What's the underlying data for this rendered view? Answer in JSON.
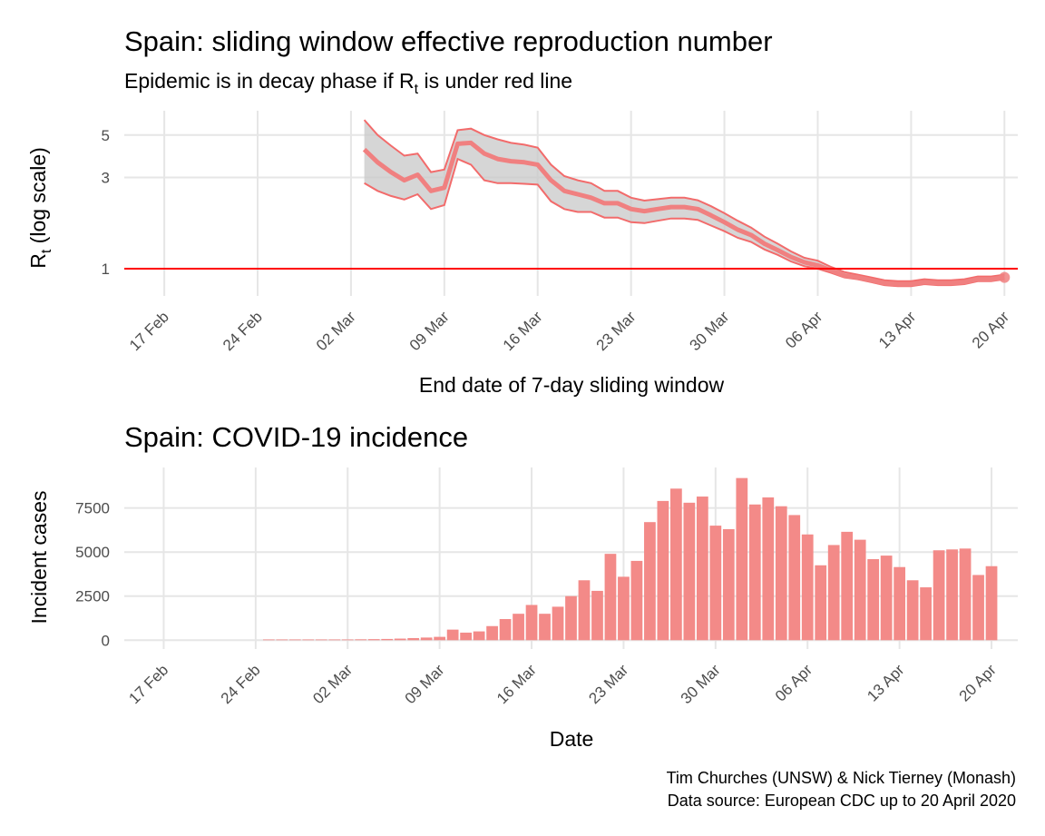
{
  "colors": {
    "line": "#f08080",
    "line_dark": "#f26b6b",
    "ribbon": "#c8c8c8",
    "threshold": "#ff0000",
    "bar": "#f38a88",
    "grid": "#e6e6e6"
  },
  "caption": {
    "line1": "Tim Churches (UNSW) & Nick Tierney (Monash)",
    "line2": "Data source: European CDC up to 20 April 2020"
  },
  "chart_data": [
    {
      "type": "line",
      "title": "Spain: sliding window effective reproduction number",
      "subtitle_before": "Epidemic is in decay phase if R",
      "subtitle_sub": "t",
      "subtitle_after": " is under red line",
      "xlabel": "End date of 7-day sliding window",
      "ylabel_main": "R",
      "ylabel_sub": "t",
      "ylabel_after": " (log scale)",
      "y_scale": "log",
      "ylim": [
        0.72,
        7.0
      ],
      "xlim": [
        "2020-02-14",
        "2020-04-21"
      ],
      "y_ticks": [
        1,
        3,
        5
      ],
      "x_ticks": [
        "2020-02-17",
        "2020-02-24",
        "2020-03-02",
        "2020-03-09",
        "2020-03-16",
        "2020-03-23",
        "2020-03-30",
        "2020-04-06",
        "2020-04-13",
        "2020-04-20"
      ],
      "x_tick_labels": [
        "17 Feb",
        "24 Feb",
        "02 Mar",
        "09 Mar",
        "16 Mar",
        "23 Mar",
        "30 Mar",
        "06 Apr",
        "13 Apr",
        "20 Apr"
      ],
      "threshold": 1,
      "grid": true,
      "series": [
        {
          "x": [
            "2020-03-03",
            "2020-03-04",
            "2020-03-05",
            "2020-03-06",
            "2020-03-07",
            "2020-03-08",
            "2020-03-09",
            "2020-03-10",
            "2020-03-11",
            "2020-03-12",
            "2020-03-13",
            "2020-03-14",
            "2020-03-15",
            "2020-03-16",
            "2020-03-17",
            "2020-03-18",
            "2020-03-19",
            "2020-03-20",
            "2020-03-21",
            "2020-03-22",
            "2020-03-23",
            "2020-03-24",
            "2020-03-25",
            "2020-03-26",
            "2020-03-27",
            "2020-03-28",
            "2020-03-29",
            "2020-03-30",
            "2020-03-31",
            "2020-04-01",
            "2020-04-02",
            "2020-04-03",
            "2020-04-04",
            "2020-04-05",
            "2020-04-06",
            "2020-04-07",
            "2020-04-08",
            "2020-04-09",
            "2020-04-10",
            "2020-04-11",
            "2020-04-12",
            "2020-04-13",
            "2020-04-14",
            "2020-04-15",
            "2020-04-16",
            "2020-04-17",
            "2020-04-18",
            "2020-04-19",
            "2020-04-20"
          ],
          "y": [
            4.2,
            3.6,
            3.2,
            2.9,
            3.1,
            2.55,
            2.65,
            4.5,
            4.55,
            4.0,
            3.75,
            3.65,
            3.6,
            3.5,
            2.9,
            2.55,
            2.45,
            2.35,
            2.2,
            2.2,
            2.05,
            2.0,
            2.05,
            2.1,
            2.1,
            2.05,
            1.9,
            1.75,
            1.6,
            1.5,
            1.35,
            1.25,
            1.15,
            1.08,
            1.04,
            0.98,
            0.92,
            0.9,
            0.87,
            0.84,
            0.83,
            0.83,
            0.85,
            0.84,
            0.84,
            0.85,
            0.88,
            0.88,
            0.9
          ],
          "lower": [
            2.8,
            2.55,
            2.4,
            2.3,
            2.45,
            2.05,
            2.15,
            3.75,
            3.5,
            2.9,
            2.8,
            2.8,
            2.78,
            2.75,
            2.25,
            2.05,
            1.98,
            1.98,
            1.85,
            1.85,
            1.75,
            1.73,
            1.78,
            1.83,
            1.83,
            1.8,
            1.68,
            1.57,
            1.45,
            1.38,
            1.26,
            1.18,
            1.09,
            1.03,
            1.0,
            0.95,
            0.9,
            0.88,
            0.85,
            0.82,
            0.81,
            0.81,
            0.83,
            0.82,
            0.82,
            0.83,
            0.86,
            0.86,
            0.88
          ],
          "upper": [
            6.0,
            5.0,
            4.4,
            3.9,
            4.0,
            3.2,
            3.3,
            5.3,
            5.4,
            5.0,
            4.75,
            4.55,
            4.45,
            4.3,
            3.5,
            3.05,
            2.9,
            2.8,
            2.55,
            2.55,
            2.35,
            2.27,
            2.31,
            2.35,
            2.35,
            2.28,
            2.12,
            1.95,
            1.78,
            1.64,
            1.47,
            1.35,
            1.23,
            1.14,
            1.1,
            1.02,
            0.96,
            0.93,
            0.9,
            0.87,
            0.86,
            0.86,
            0.88,
            0.87,
            0.87,
            0.88,
            0.91,
            0.91,
            0.93
          ]
        }
      ]
    },
    {
      "type": "bar",
      "title": "Spain: COVID-19 incidence",
      "xlabel": "Date",
      "ylabel": "Incident cases",
      "ylim": [
        -500,
        9800
      ],
      "xlim": [
        "2020-02-14",
        "2020-04-22"
      ],
      "y_ticks": [
        0,
        2500,
        5000,
        7500
      ],
      "x_ticks": [
        "2020-02-17",
        "2020-02-24",
        "2020-03-02",
        "2020-03-09",
        "2020-03-16",
        "2020-03-23",
        "2020-03-30",
        "2020-04-06",
        "2020-04-13",
        "2020-04-20"
      ],
      "x_tick_labels": [
        "17 Feb",
        "24 Feb",
        "02 Mar",
        "09 Mar",
        "16 Mar",
        "23 Mar",
        "30 Mar",
        "06 Apr",
        "13 Apr",
        "20 Apr"
      ],
      "grid": true,
      "x": [
        "2020-02-25",
        "2020-02-26",
        "2020-02-27",
        "2020-02-28",
        "2020-02-29",
        "2020-03-01",
        "2020-03-02",
        "2020-03-03",
        "2020-03-04",
        "2020-03-05",
        "2020-03-06",
        "2020-03-07",
        "2020-03-08",
        "2020-03-09",
        "2020-03-10",
        "2020-03-11",
        "2020-03-12",
        "2020-03-13",
        "2020-03-14",
        "2020-03-15",
        "2020-03-16",
        "2020-03-17",
        "2020-03-18",
        "2020-03-19",
        "2020-03-20",
        "2020-03-21",
        "2020-03-22",
        "2020-03-23",
        "2020-03-24",
        "2020-03-25",
        "2020-03-26",
        "2020-03-27",
        "2020-03-28",
        "2020-03-29",
        "2020-03-30",
        "2020-03-31",
        "2020-04-01",
        "2020-04-02",
        "2020-04-03",
        "2020-04-04",
        "2020-04-05",
        "2020-04-06",
        "2020-04-07",
        "2020-04-08",
        "2020-04-09",
        "2020-04-10",
        "2020-04-11",
        "2020-04-12",
        "2020-04-13",
        "2020-04-14",
        "2020-04-15",
        "2020-04-16",
        "2020-04-17",
        "2020-04-18",
        "2020-04-19",
        "2020-04-20"
      ],
      "values": [
        4,
        3,
        5,
        10,
        17,
        30,
        40,
        50,
        60,
        70,
        90,
        120,
        150,
        190,
        600,
        430,
        500,
        800,
        1200,
        1500,
        2000,
        1500,
        1900,
        2500,
        3400,
        2800,
        4900,
        3600,
        4500,
        6700,
        7900,
        8600,
        7800,
        8150,
        6500,
        6300,
        9200,
        7700,
        8100,
        7600,
        7100,
        6000,
        4250,
        5400,
        6150,
        5700,
        4600,
        4800,
        4150,
        3400,
        3000,
        5100,
        5150,
        5200,
        3700,
        4200
      ]
    }
  ]
}
